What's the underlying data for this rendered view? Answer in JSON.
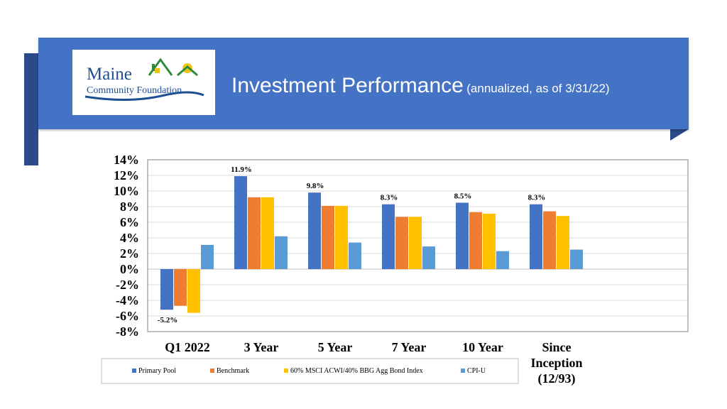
{
  "header": {
    "logo": {
      "name": "Maine",
      "subname": "Community Foundation"
    },
    "title": "Investment Performance",
    "subtitle": "(annualized, as of 3/31/22)"
  },
  "colors": {
    "banner": "#4472c4",
    "banner_dark": "#2b4a8a"
  },
  "chart_data": {
    "type": "bar",
    "categories": [
      "Q1 2022",
      "3 Year",
      "5 Year",
      "7 Year",
      "10 Year",
      "Since Inception (12/93)"
    ],
    "category_lines": [
      [
        "Q1 2022"
      ],
      [
        "3 Year"
      ],
      [
        "5 Year"
      ],
      [
        "7 Year"
      ],
      [
        "10 Year"
      ],
      [
        "Since",
        "Inception",
        "(12/93)"
      ]
    ],
    "series": [
      {
        "name": "Primary Pool",
        "color": "#4472c4",
        "values": [
          -5.2,
          11.9,
          9.8,
          8.3,
          8.5,
          8.3
        ]
      },
      {
        "name": "Benchmark",
        "color": "#ed7d31",
        "values": [
          -4.7,
          9.2,
          8.1,
          6.7,
          7.3,
          7.4
        ]
      },
      {
        "name": "60% MSCI ACWI/40% BBG Agg Bond Index",
        "color": "#ffc000",
        "values": [
          -5.6,
          9.2,
          8.1,
          6.7,
          7.1,
          6.8
        ]
      },
      {
        "name": "CPI-U",
        "color": "#5b9bd5",
        "values": [
          3.1,
          4.2,
          3.4,
          2.9,
          2.3,
          2.5
        ]
      }
    ],
    "data_labels": [
      "-5.2%",
      "11.9%",
      "9.8%",
      "8.3%",
      "8.5%",
      "8.3%"
    ],
    "ylim": [
      -8,
      14
    ],
    "yticks": [
      14,
      12,
      10,
      8,
      6,
      4,
      2,
      0,
      -2,
      -4,
      -6,
      -8
    ],
    "ytick_labels": [
      "14%",
      "12%",
      "10%",
      "8%",
      "6%",
      "4%",
      "2%",
      "0%",
      "-2%",
      "-4%",
      "-6%",
      "-8%"
    ],
    "grid": true,
    "legend_position": "bottom"
  }
}
